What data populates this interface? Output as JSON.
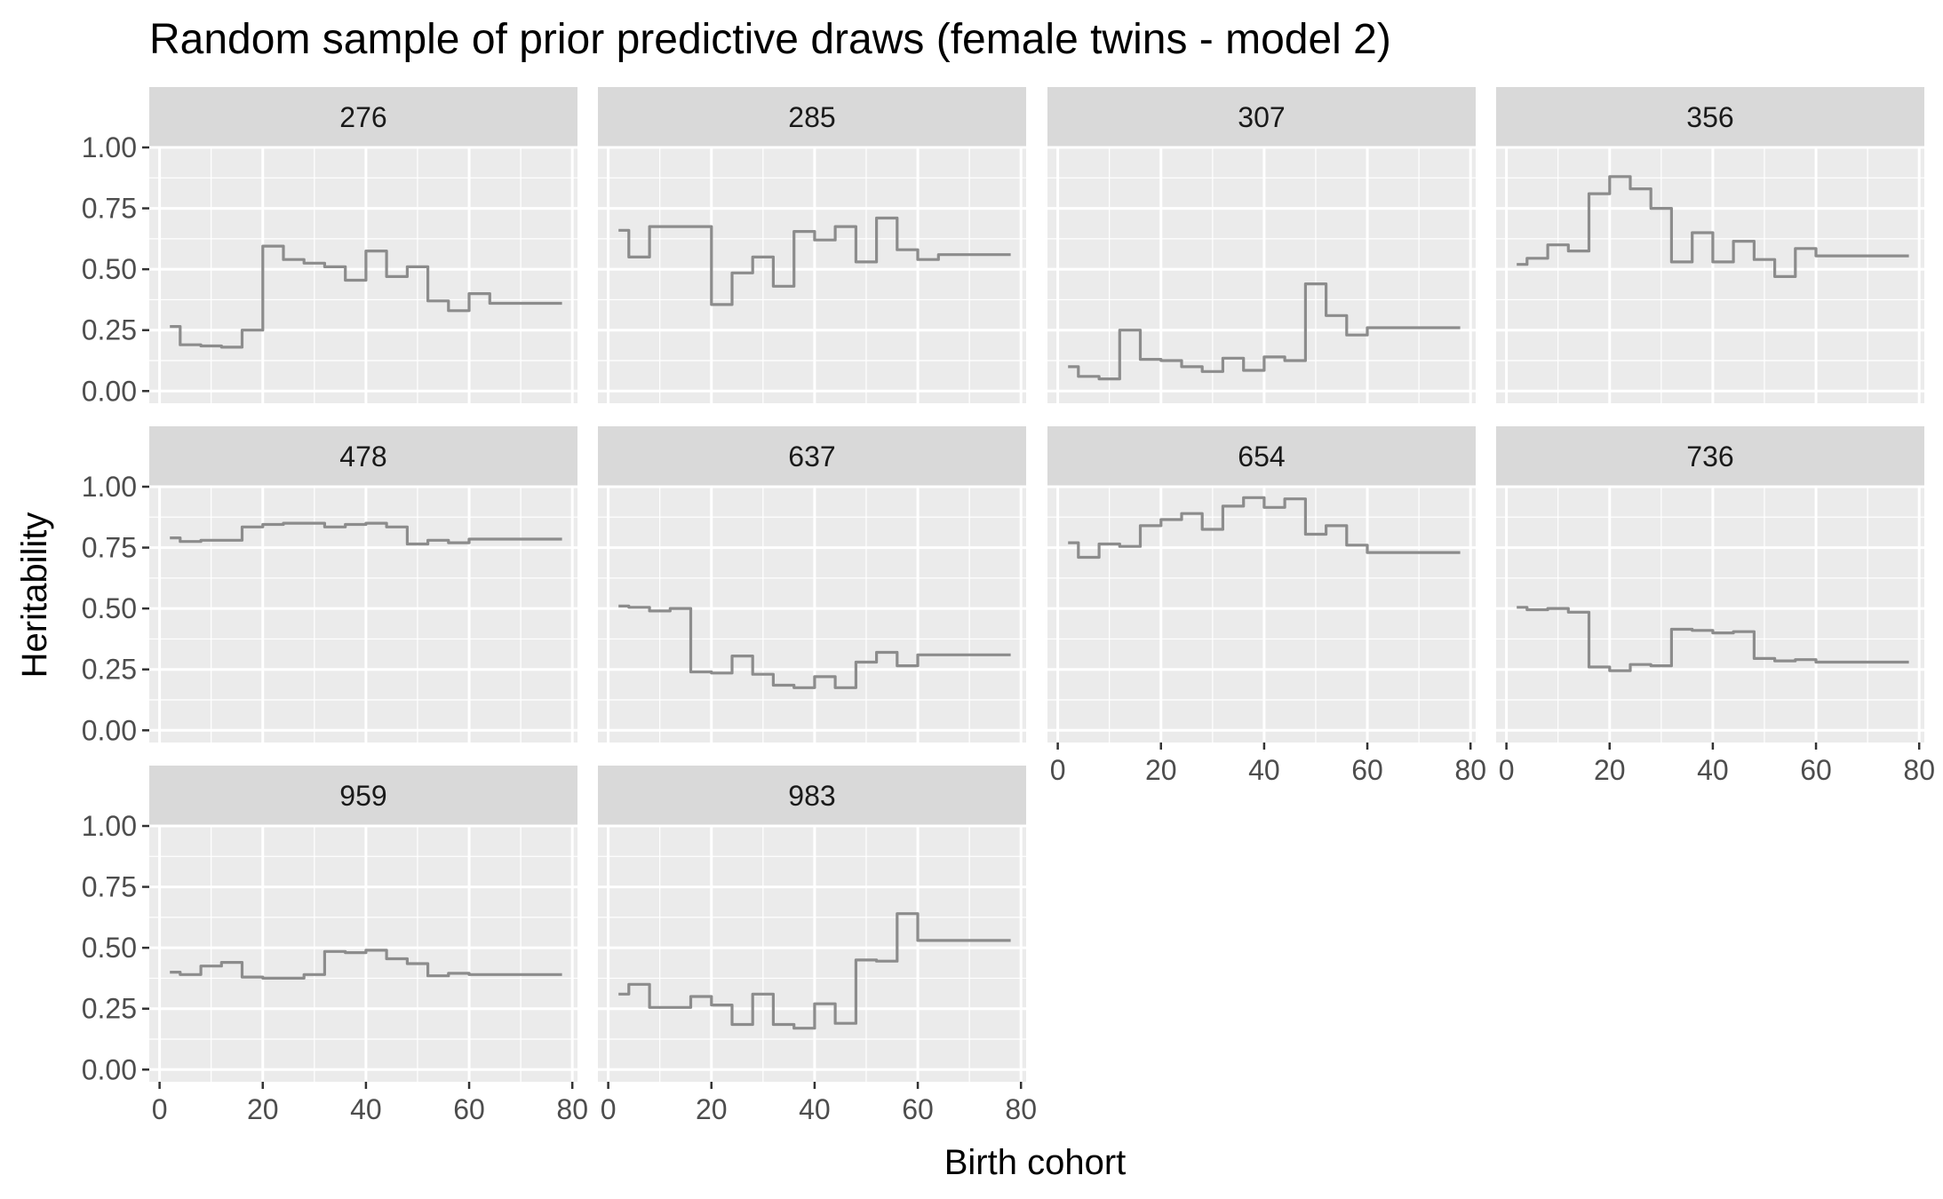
{
  "chart_data": {
    "type": "line",
    "title": "Random sample of prior predictive draws (female twins - model 2)",
    "xlabel": "Birth cohort",
    "ylabel": "Heritability",
    "xlim": [
      -2,
      81
    ],
    "ylim": [
      -0.05,
      1.0
    ],
    "x_ticks": [
      0,
      20,
      40,
      60,
      80
    ],
    "y_ticks": [
      0.0,
      0.25,
      0.5,
      0.75,
      1.0
    ],
    "y_tick_labels": [
      "0.00",
      "0.25",
      "0.50",
      "0.75",
      "1.00"
    ],
    "x": [
      2,
      6,
      10,
      14,
      18,
      22,
      26,
      30,
      34,
      38,
      42,
      46,
      50,
      54,
      58,
      62,
      66,
      70,
      74,
      78
    ],
    "colors": {
      "line": "#8c8c8c",
      "panel": "#ebebeb",
      "strip": "#d9d9d9",
      "grid": "#ffffff"
    },
    "grid": true,
    "layout": "facet_wrap, 4 columns",
    "panels": [
      {
        "label": "276",
        "values": [
          0.265,
          0.19,
          0.185,
          0.18,
          0.25,
          0.595,
          0.54,
          0.525,
          0.51,
          0.455,
          0.575,
          0.47,
          0.51,
          0.37,
          0.33,
          0.4,
          0.36,
          0.36,
          0.36,
          0.36
        ]
      },
      {
        "label": "285",
        "values": [
          0.66,
          0.55,
          0.675,
          0.675,
          0.675,
          0.355,
          0.485,
          0.55,
          0.43,
          0.655,
          0.62,
          0.675,
          0.53,
          0.71,
          0.58,
          0.54,
          0.56,
          0.56,
          0.56,
          0.56
        ]
      },
      {
        "label": "307",
        "values": [
          0.1,
          0.06,
          0.05,
          0.25,
          0.13,
          0.125,
          0.1,
          0.08,
          0.135,
          0.085,
          0.14,
          0.125,
          0.44,
          0.31,
          0.23,
          0.26,
          0.26,
          0.26,
          0.26,
          0.26
        ]
      },
      {
        "label": "356",
        "values": [
          0.52,
          0.545,
          0.6,
          0.575,
          0.81,
          0.88,
          0.83,
          0.75,
          0.53,
          0.65,
          0.53,
          0.615,
          0.54,
          0.47,
          0.585,
          0.555,
          0.555,
          0.555,
          0.555,
          0.555
        ]
      },
      {
        "label": "478",
        "values": [
          0.79,
          0.775,
          0.78,
          0.78,
          0.835,
          0.845,
          0.85,
          0.85,
          0.835,
          0.845,
          0.85,
          0.835,
          0.765,
          0.78,
          0.77,
          0.785,
          0.785,
          0.785,
          0.785,
          0.785
        ]
      },
      {
        "label": "637",
        "values": [
          0.51,
          0.505,
          0.49,
          0.5,
          0.24,
          0.235,
          0.305,
          0.23,
          0.185,
          0.175,
          0.22,
          0.175,
          0.28,
          0.32,
          0.265,
          0.31,
          0.31,
          0.31,
          0.31,
          0.31
        ]
      },
      {
        "label": "654",
        "values": [
          0.77,
          0.71,
          0.765,
          0.755,
          0.84,
          0.865,
          0.89,
          0.825,
          0.92,
          0.955,
          0.915,
          0.95,
          0.805,
          0.84,
          0.76,
          0.73,
          0.73,
          0.73,
          0.73,
          0.73
        ]
      },
      {
        "label": "736",
        "values": [
          0.505,
          0.495,
          0.5,
          0.485,
          0.26,
          0.245,
          0.27,
          0.265,
          0.415,
          0.41,
          0.4,
          0.405,
          0.295,
          0.285,
          0.29,
          0.28,
          0.28,
          0.28,
          0.28,
          0.28
        ]
      },
      {
        "label": "959",
        "values": [
          0.4,
          0.39,
          0.425,
          0.44,
          0.38,
          0.375,
          0.375,
          0.39,
          0.485,
          0.48,
          0.49,
          0.455,
          0.435,
          0.385,
          0.395,
          0.39,
          0.39,
          0.39,
          0.39,
          0.39
        ]
      },
      {
        "label": "983",
        "values": [
          0.31,
          0.35,
          0.255,
          0.255,
          0.3,
          0.265,
          0.185,
          0.31,
          0.185,
          0.17,
          0.27,
          0.19,
          0.45,
          0.445,
          0.64,
          0.53,
          0.53,
          0.53,
          0.53,
          0.53
        ]
      }
    ]
  }
}
